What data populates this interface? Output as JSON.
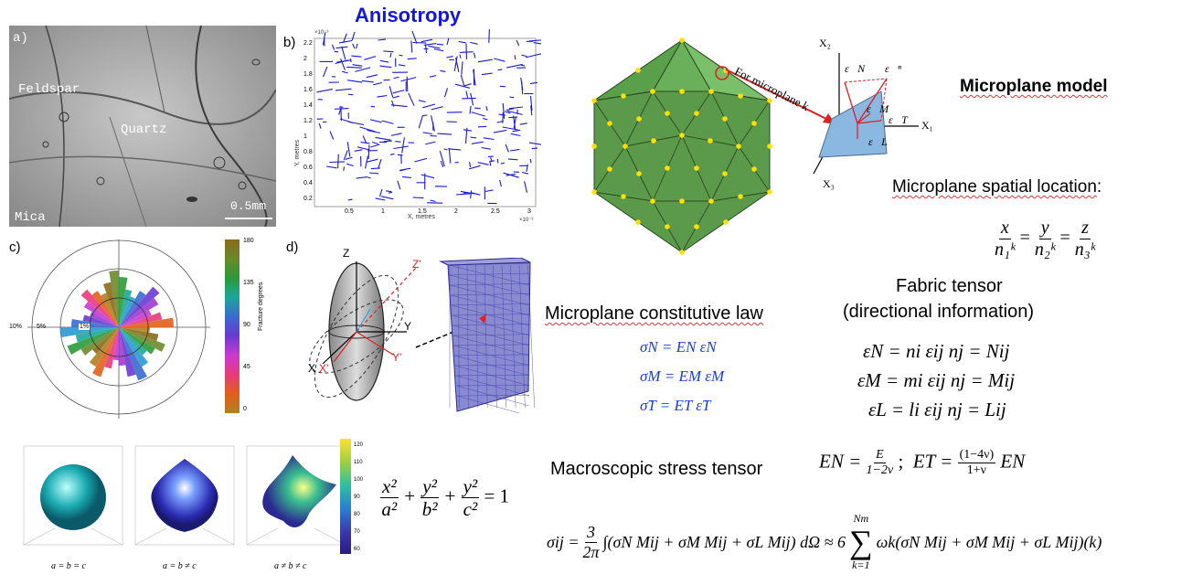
{
  "title": "Anisotropy",
  "panels": {
    "a": {
      "label": "a)",
      "mineral1": "Feldspar",
      "mineral2": "Quartz",
      "mineral3": "Mica",
      "scalebar": "0.5mm"
    },
    "b": {
      "label": "b)",
      "ylabel": "Y, metres",
      "xlabel": "X, metres",
      "y_exp": "×10⁻³",
      "x_exp": "×10⁻³",
      "yticks": [
        "2.2",
        "2",
        "1.8",
        "1.6",
        "1.4",
        "1.2",
        "1",
        "0.8",
        "0.6",
        "0.4",
        "0.2"
      ],
      "xticks": [
        "0.5",
        "1",
        "1.5",
        "2",
        "2.5",
        "3"
      ]
    },
    "c": {
      "label": "c)",
      "ring_labels": [
        "10%",
        "5%",
        "1%"
      ],
      "colorbar_title": "Fracture degrees",
      "colorbar_ticks": [
        "180",
        "135",
        "90",
        "45",
        "0"
      ]
    },
    "d": {
      "label": "d)",
      "axes": {
        "z": "Z",
        "zp": "Z'",
        "y": "Y",
        "yp": "Y'",
        "x": "X",
        "xp": "X'"
      }
    },
    "e": {
      "captions": [
        "a = b = c",
        "a = b ≠ c",
        "a ≠ b ≠ c"
      ],
      "colorbar_ticks": [
        "120",
        "110",
        "100",
        "90",
        "80",
        "70",
        "60"
      ]
    }
  },
  "ellipsoid_eq": {
    "lhs1n": "x²",
    "lhs1d": "a²",
    "lhs2n": "y²",
    "lhs2d": "b²",
    "lhs3n": "y²",
    "lhs3d": "c²",
    "rhs": "= 1",
    "plus": "+"
  },
  "microplane": {
    "model_title": "Microplane model",
    "callout": "For microplane k",
    "coord_labels": {
      "x1": "X₁",
      "x2": "X₂",
      "x3": "X₃",
      "en": "ε⃗N",
      "eN": "ε⃗ⁿ",
      "eM": "ε⃗M",
      "eT": "ε⃗T",
      "eL": "ε⃗L"
    },
    "spatial_title": "Microplane spatial location",
    "spatial_colon": ":",
    "spatial_eq": {
      "n1": "x",
      "d1": "n₁ᵏ",
      "n2": "y",
      "d2": "n₂ᵏ",
      "n3": "z",
      "d3": "n₃ᵏ",
      "eq": "="
    },
    "law_title": "Microplane constitutive law",
    "law_lines": [
      "σ̇N = EN ε̇N",
      "σ̇M = EM ε̇M",
      "σ̇T = ET ε̇T"
    ],
    "fabric_title1": "Fabric tensor",
    "fabric_title2": "(directional information)",
    "fabric_lines": [
      "εN = ni εij nj = Nij",
      "εM = mi εij nj = Mij",
      "εL = li εij nj = Lij"
    ],
    "macro_title": "Macroscopic stress tensor",
    "en_lhs": "EN =",
    "en_num": "E",
    "en_den": "1−2ν",
    "sep": ";",
    "et_lhs": "ET =",
    "et_num": "(1−4ν)",
    "et_den": "1+ν",
    "et_tail": "EN",
    "sigma_lhs": "σij =",
    "sigma_fn": "3",
    "sigma_fd": "2π",
    "sigma_mid": "∫(σN Mij + σM Mij + σL Mij) dΩ ≈ 6",
    "sum_top": "Nm",
    "sum_bot": "k=1",
    "sigma_tail": "ωk(σN Mij + σM Mij + σL Mij)(k)"
  }
}
